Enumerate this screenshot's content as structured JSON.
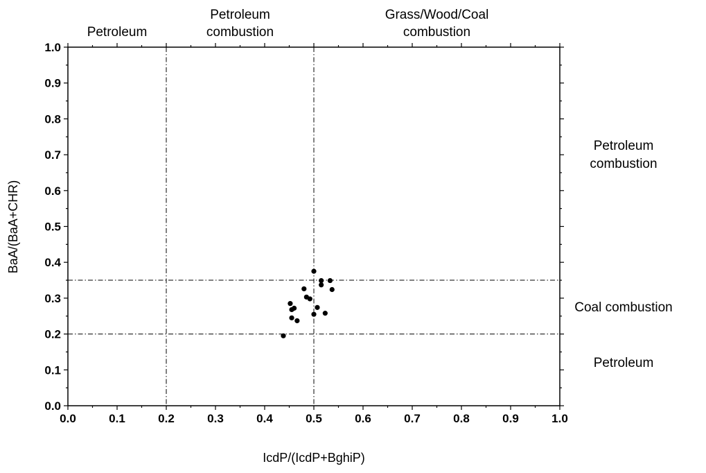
{
  "chart_data": {
    "type": "scatter",
    "xlabel": "IcdP/(IcdP+BghiP)",
    "ylabel": "BaA/(BaA+CHR)",
    "xlim": [
      0.0,
      1.0
    ],
    "ylim": [
      0.0,
      1.0
    ],
    "x_ticks": [
      "0.0",
      "0.1",
      "0.2",
      "0.3",
      "0.4",
      "0.5",
      "0.6",
      "0.7",
      "0.8",
      "0.9",
      "1.0"
    ],
    "y_ticks": [
      "0.0",
      "0.1",
      "0.2",
      "0.3",
      "0.4",
      "0.5",
      "0.6",
      "0.7",
      "0.8",
      "0.9",
      "1.0"
    ],
    "grid": false,
    "marker_color": "#000000",
    "reference_lines": {
      "vertical": [
        0.2,
        0.5
      ],
      "horizontal": [
        0.2,
        0.35
      ],
      "style": "dash-dot"
    },
    "top_region_labels": [
      {
        "lines": [
          "Petroleum"
        ],
        "x_center": 0.1
      },
      {
        "lines": [
          "Petroleum",
          "combustion"
        ],
        "x_center": 0.35
      },
      {
        "lines": [
          "Grass/Wood/Coal",
          "combustion"
        ],
        "x_center": 0.75
      }
    ],
    "right_region_labels": [
      {
        "lines": [
          "Petroleum",
          "combustion"
        ],
        "y_center": 0.7
      },
      {
        "lines": [
          "Coal combustion"
        ],
        "y_center": 0.275
      },
      {
        "lines": [
          "Petroleum"
        ],
        "y_center": 0.12
      }
    ],
    "points": [
      {
        "x": 0.438,
        "y": 0.195
      },
      {
        "x": 0.452,
        "y": 0.285
      },
      {
        "x": 0.455,
        "y": 0.268
      },
      {
        "x": 0.46,
        "y": 0.272
      },
      {
        "x": 0.455,
        "y": 0.245
      },
      {
        "x": 0.466,
        "y": 0.237
      },
      {
        "x": 0.48,
        "y": 0.326
      },
      {
        "x": 0.485,
        "y": 0.303
      },
      {
        "x": 0.492,
        "y": 0.298
      },
      {
        "x": 0.5,
        "y": 0.375
      },
      {
        "x": 0.5,
        "y": 0.255
      },
      {
        "x": 0.507,
        "y": 0.274
      },
      {
        "x": 0.515,
        "y": 0.349
      },
      {
        "x": 0.515,
        "y": 0.337
      },
      {
        "x": 0.523,
        "y": 0.258
      },
      {
        "x": 0.533,
        "y": 0.349
      },
      {
        "x": 0.537,
        "y": 0.324
      }
    ]
  }
}
